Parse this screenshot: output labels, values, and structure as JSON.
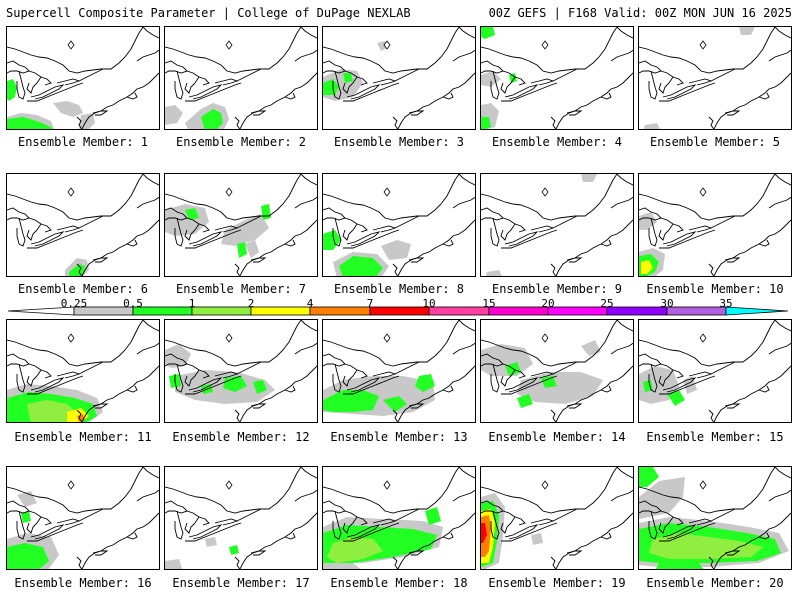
{
  "header": {
    "left": "Supercell Composite Parameter | College of DuPage NEXLAB",
    "right": "00Z GEFS | F168 Valid: 00Z MON JUN 16 2025"
  },
  "colors": {
    "lightgray": "#c8c8c8",
    "green": "#22ff22",
    "lightgreen": "#90ee40",
    "yellow": "#ffff00",
    "orange": "#ff8000",
    "red": "#ff0000",
    "pink": "#ff40a0",
    "magenta1": "#ff00d0",
    "magenta2": "#ff00ff",
    "purple": "#9000ff",
    "violet": "#b060e0",
    "cyan": "#00ffff"
  },
  "colorbar": {
    "ticks": [
      "0.25",
      "0.5",
      "1",
      "2",
      "4",
      "7",
      "10",
      "15",
      "20",
      "25",
      "30",
      "35"
    ],
    "bins": [
      "#c8c8c8",
      "#22ff22",
      "#90ee40",
      "#ffff00",
      "#ff8000",
      "#ff0000",
      "#ff40a0",
      "#ff00d0",
      "#ff00ff",
      "#9000ff",
      "#b060e0"
    ],
    "cap_color": "#00ffff"
  },
  "members": [
    {
      "label": "Ensemble Member: 1",
      "level": "low-gray-green"
    },
    {
      "label": "Ensemble Member: 2",
      "level": "green-center"
    },
    {
      "label": "Ensemble Member: 3",
      "level": "gray-green-lakes"
    },
    {
      "label": "Ensemble Member: 4",
      "level": "green-west"
    },
    {
      "label": "Ensemble Member: 5",
      "level": "minimal"
    },
    {
      "label": "Ensemble Member: 6",
      "level": "green-south"
    },
    {
      "label": "Ensemble Member: 7",
      "level": "scattered"
    },
    {
      "label": "Ensemble Member: 8",
      "level": "green-south-wide"
    },
    {
      "label": "Ensemble Member: 9",
      "level": "minimal"
    },
    {
      "label": "Ensemble Member: 10",
      "level": "yellow-southwest"
    },
    {
      "label": "Ensemble Member: 11",
      "level": "yellow-south"
    },
    {
      "label": "Ensemble Member: 12",
      "level": "scattered-wide"
    },
    {
      "label": "Ensemble Member: 13",
      "level": "green-wide"
    },
    {
      "label": "Ensemble Member: 14",
      "level": "scattered-north"
    },
    {
      "label": "Ensemble Member: 15",
      "level": "gray-west"
    },
    {
      "label": "Ensemble Member: 16",
      "level": "green-southwest"
    },
    {
      "label": "Ensemble Member: 17",
      "level": "minimal-gray"
    },
    {
      "label": "Ensemble Member: 18",
      "level": "green-wide-lightgreen"
    },
    {
      "label": "Ensemble Member: 19",
      "level": "orange-west"
    },
    {
      "label": "Ensemble Member: 20",
      "level": "lightgreen-wide"
    }
  ]
}
